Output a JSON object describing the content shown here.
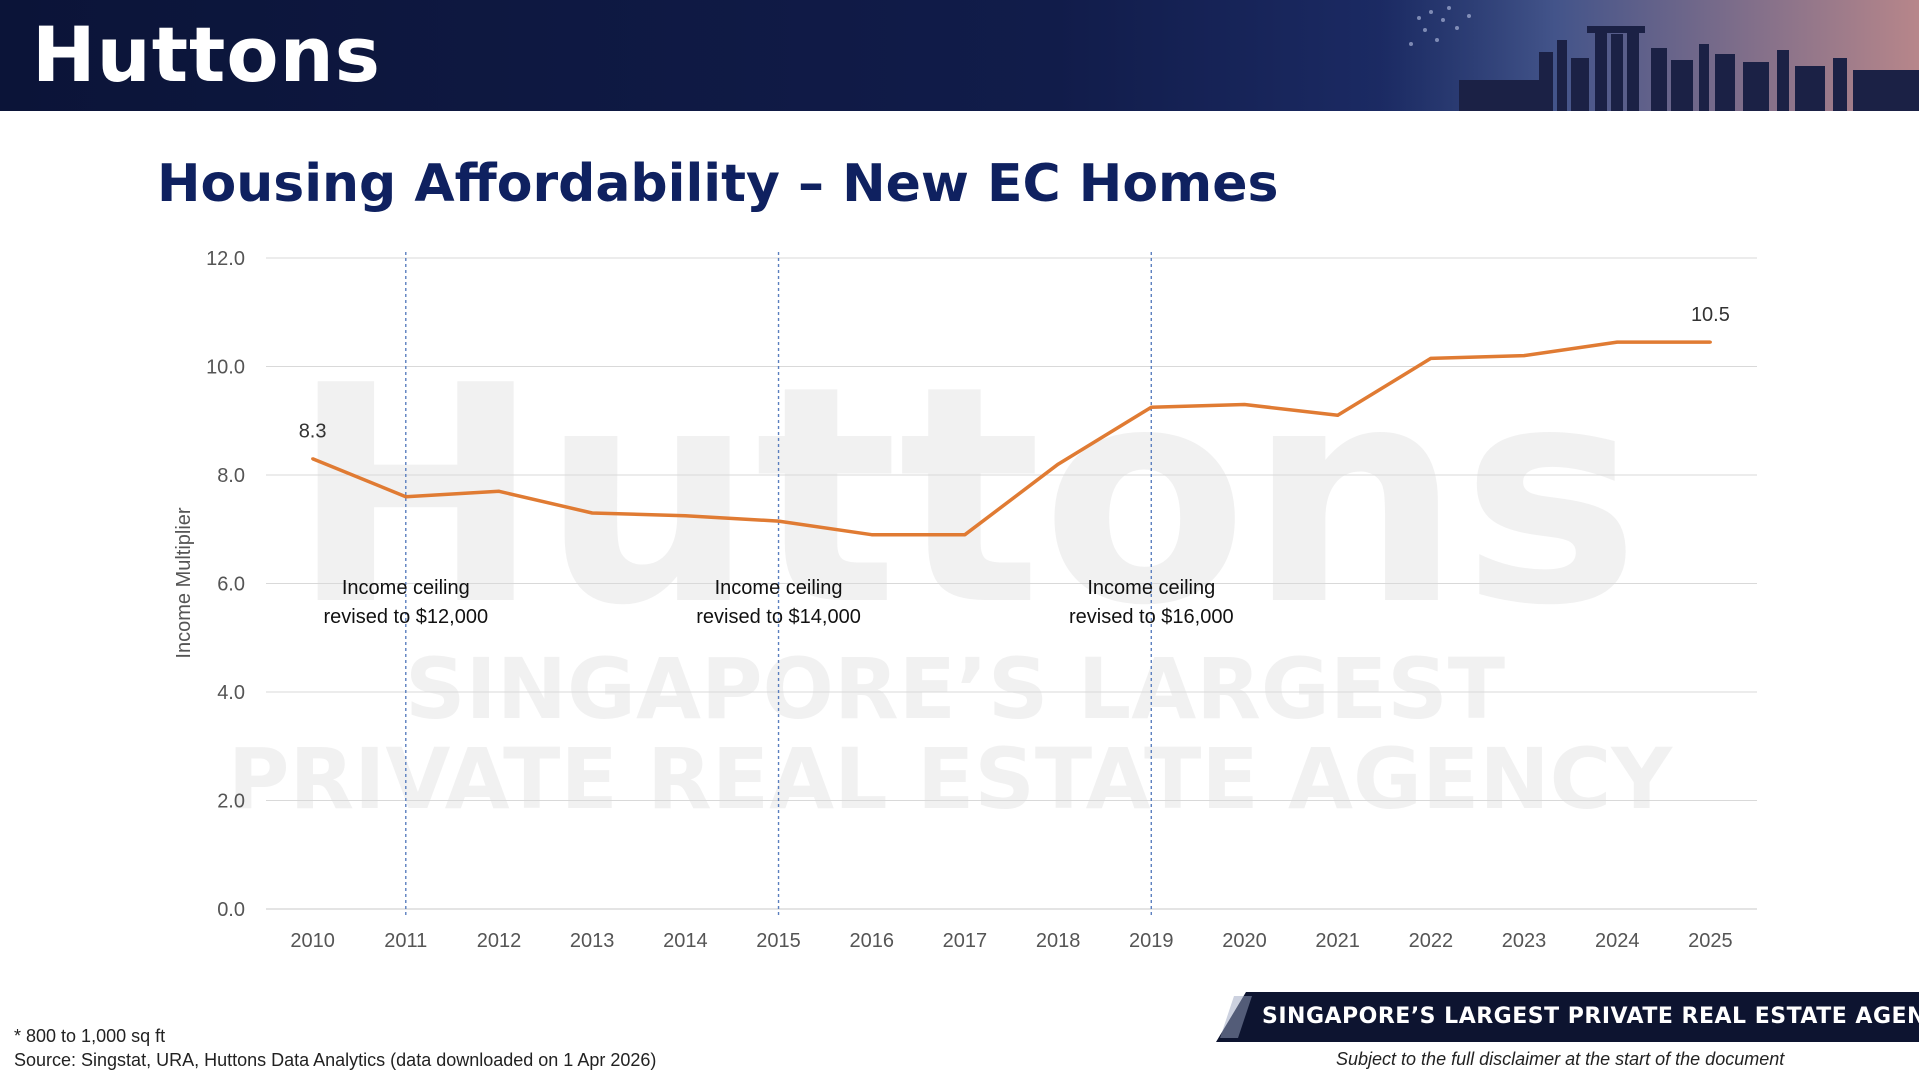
{
  "header": {
    "brand": "Huttons"
  },
  "title": "Housing Affordability – New EC Homes",
  "watermark": {
    "big": "Huttons",
    "line1": "SINGAPORE’S LARGEST",
    "line2": "PRIVATE REAL ESTATE AGENCY"
  },
  "chart_data": {
    "type": "line",
    "x": [
      "2010",
      "2011",
      "2012",
      "2013",
      "2014",
      "2015",
      "2016",
      "2017",
      "2018",
      "2019",
      "2020",
      "2021",
      "2022",
      "2023",
      "2024",
      "2025"
    ],
    "series": [
      {
        "values": [
          8.3,
          7.6,
          7.7,
          7.3,
          7.25,
          7.15,
          6.9,
          6.9,
          8.2,
          9.25,
          9.3,
          9.1,
          10.15,
          10.2,
          10.45,
          10.45
        ]
      }
    ],
    "ylabel": "Income Multiplier",
    "ylim": [
      0,
      12
    ],
    "yticks": [
      "0.0",
      "2.0",
      "4.0",
      "6.0",
      "8.0",
      "10.0",
      "12.0"
    ],
    "grid": true,
    "data_labels": [
      {
        "x": "2010",
        "text": "8.3"
      },
      {
        "x": "2025",
        "text": "10.5"
      }
    ],
    "annotations": [
      {
        "x": "2011",
        "line1": "Income ceiling",
        "line2": "revised to $12,000"
      },
      {
        "x": "2015",
        "line1": "Income ceiling",
        "line2": "revised to $14,000"
      },
      {
        "x": "2019",
        "line1": "Income ceiling",
        "line2": "revised to $16,000"
      }
    ],
    "line_color": "#e07b33"
  },
  "footer": {
    "note": "* 800 to 1,000 sq ft",
    "source": "Source: Singstat, URA, Huttons Data Analytics (data downloaded on 1 Apr 2026)",
    "banner": "SINGAPORE’S LARGEST PRIVATE REAL ESTATE AGENCY",
    "disclaimer": "Subject to the full disclaimer at the start of the document"
  }
}
